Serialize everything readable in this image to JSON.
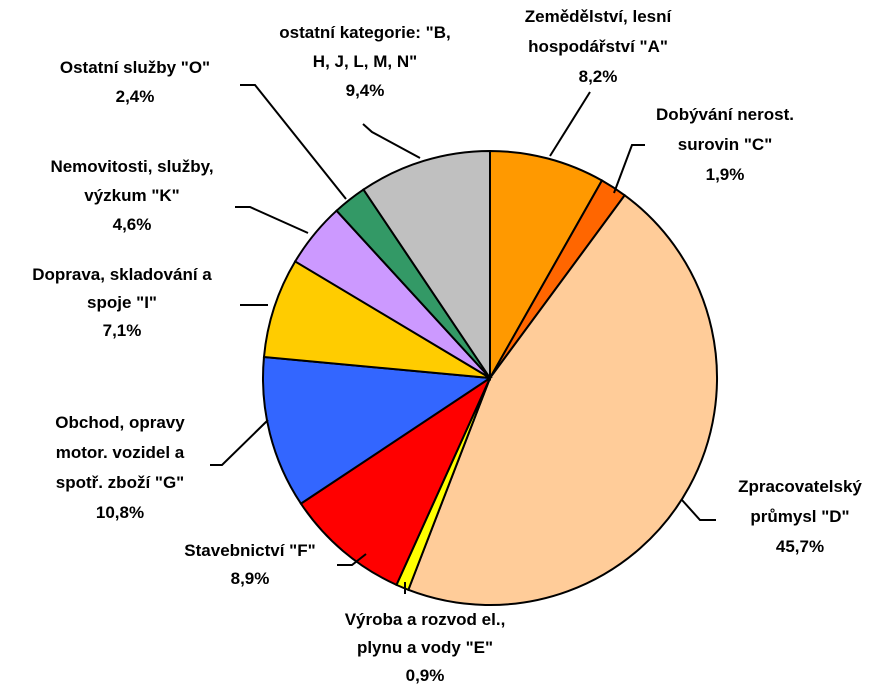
{
  "chart_data": {
    "type": "pie",
    "categories": [
      "Zemědělství, lesní\nhospodářství \"A\"",
      "Dobývání nerost.\nsurovin \"C\"",
      "Zpracovatelský\nprůmysl \"D\"",
      "Výroba a rozvod el.,\nplynu a vody \"E\"",
      "Stavebnictví \"F\"",
      "Obchod, opravy\nmotor. vozidel a\nspotř. zboží \"G\"",
      "Doprava, skladování a\nspoje \"I\"",
      "Nemovitosti, služby,\nvýzkum \"K\"",
      "Ostatní služby \"O\"",
      "ostatní kategorie: \"B,\nH, J, L, M, N\""
    ],
    "values": [
      8.2,
      1.9,
      45.7,
      0.9,
      8.9,
      10.8,
      7.1,
      4.6,
      2.4,
      9.4
    ],
    "value_labels": [
      "8,2%",
      "1,9%",
      "45,7%",
      "0,9%",
      "8,9%",
      "10,8%",
      "7,1%",
      "4,6%",
      "2,4%",
      "9,4%"
    ],
    "colors": [
      "#ff9900",
      "#ff6600",
      "#ffcc99",
      "#ffff00",
      "#ff0000",
      "#3366ff",
      "#ffcc00",
      "#cc99ff",
      "#339966",
      "#c0c0c0"
    ]
  }
}
